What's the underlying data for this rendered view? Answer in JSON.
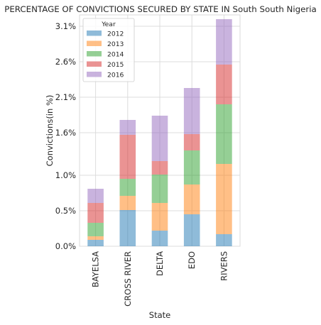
{
  "chart_data": {
    "type": "bar",
    "stacked": true,
    "title": "PERCENTAGE OF CONVICTIONS SECURED BY STATE IN South South Nigeria",
    "xlabel": "State",
    "ylabel": "Convictions(in %)",
    "categories": [
      "BAYELSA",
      "CROSS RIVER",
      "DELTA",
      "EDO",
      "RIVERS"
    ],
    "y_ticks": [
      "0.0%",
      "0.5%",
      "1.0%",
      "1.6%",
      "2.1%",
      "2.6%",
      "3.1%"
    ],
    "ylim": [
      0,
      3.26
    ],
    "grid": true,
    "legend": {
      "title": "Year",
      "placement": "top-left"
    },
    "series": [
      {
        "name": "2012",
        "color": "#1f77b4",
        "values": [
          0.09,
          0.51,
          0.22,
          0.45,
          0.17
        ]
      },
      {
        "name": "2013",
        "color": "#ff7f0e",
        "values": [
          0.05,
          0.2,
          0.39,
          0.42,
          0.99
        ]
      },
      {
        "name": "2014",
        "color": "#2ca02c",
        "values": [
          0.19,
          0.24,
          0.4,
          0.48,
          0.84
        ]
      },
      {
        "name": "2015",
        "color": "#d62728",
        "values": [
          0.28,
          0.62,
          0.19,
          0.23,
          0.56
        ]
      },
      {
        "name": "2016",
        "color": "#9467bd",
        "values": [
          0.2,
          0.21,
          0.64,
          0.65,
          0.64
        ]
      }
    ]
  }
}
